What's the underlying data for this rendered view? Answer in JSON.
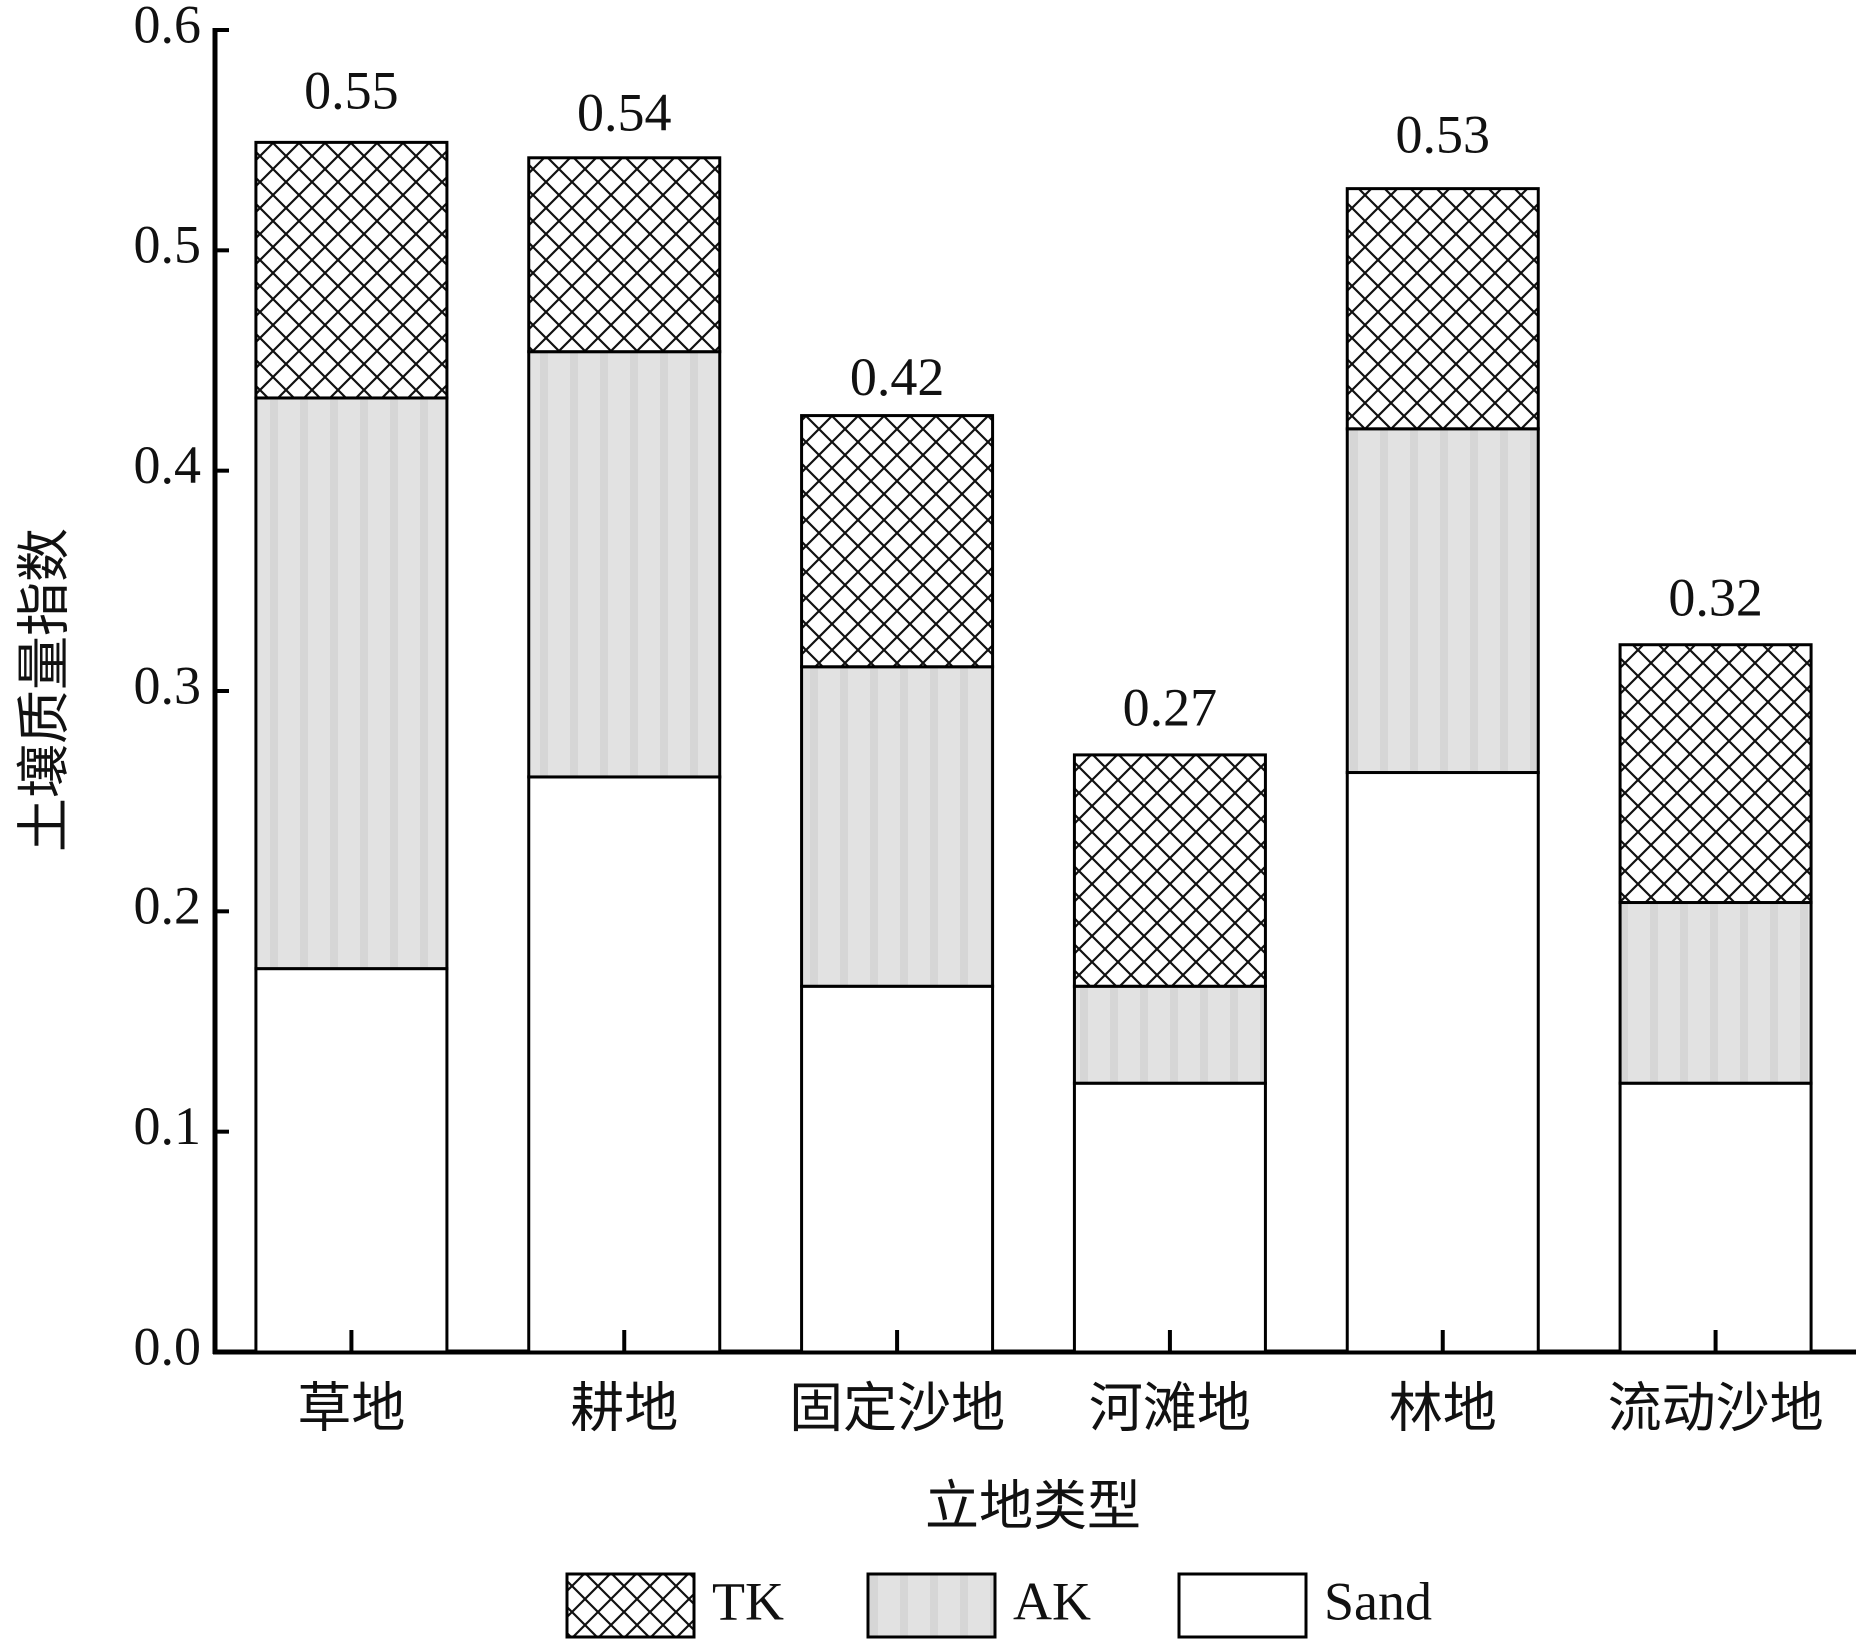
{
  "chart_data": {
    "type": "stacked_bar",
    "x_label": "立地类型",
    "y_label": "土壤质量指数",
    "categories": [
      "草地",
      "耕地",
      "固定沙地",
      "河滩地",
      "林地",
      "流动沙地"
    ],
    "series": [
      {
        "name": "Sand",
        "color": "#ffffff",
        "fill_pattern": "none",
        "values": [
          0.174,
          0.261,
          0.166,
          0.122,
          0.263,
          0.122
        ]
      },
      {
        "name": "AK",
        "color": "#e2e2e2",
        "fill_pattern": "stripes",
        "values": [
          0.259,
          0.193,
          0.145,
          0.044,
          0.156,
          0.082
        ]
      },
      {
        "name": "TK",
        "color": "#ffffff",
        "fill_pattern": "crosshatch",
        "values": [
          0.116,
          0.088,
          0.114,
          0.105,
          0.109,
          0.117
        ]
      }
    ],
    "total_labels": [
      0.55,
      0.54,
      0.42,
      0.27,
      0.53,
      0.32
    ],
    "legend_order": [
      "TK",
      "AK",
      "Sand"
    ],
    "ylim": [
      0,
      0.6
    ],
    "yticks": [
      {
        "value": 0,
        "label": "0.0"
      },
      0.1,
      0.2,
      0.3,
      0.4,
      0.5,
      0.6
    ],
    "grid": false,
    "legend_position": "bottom"
  }
}
